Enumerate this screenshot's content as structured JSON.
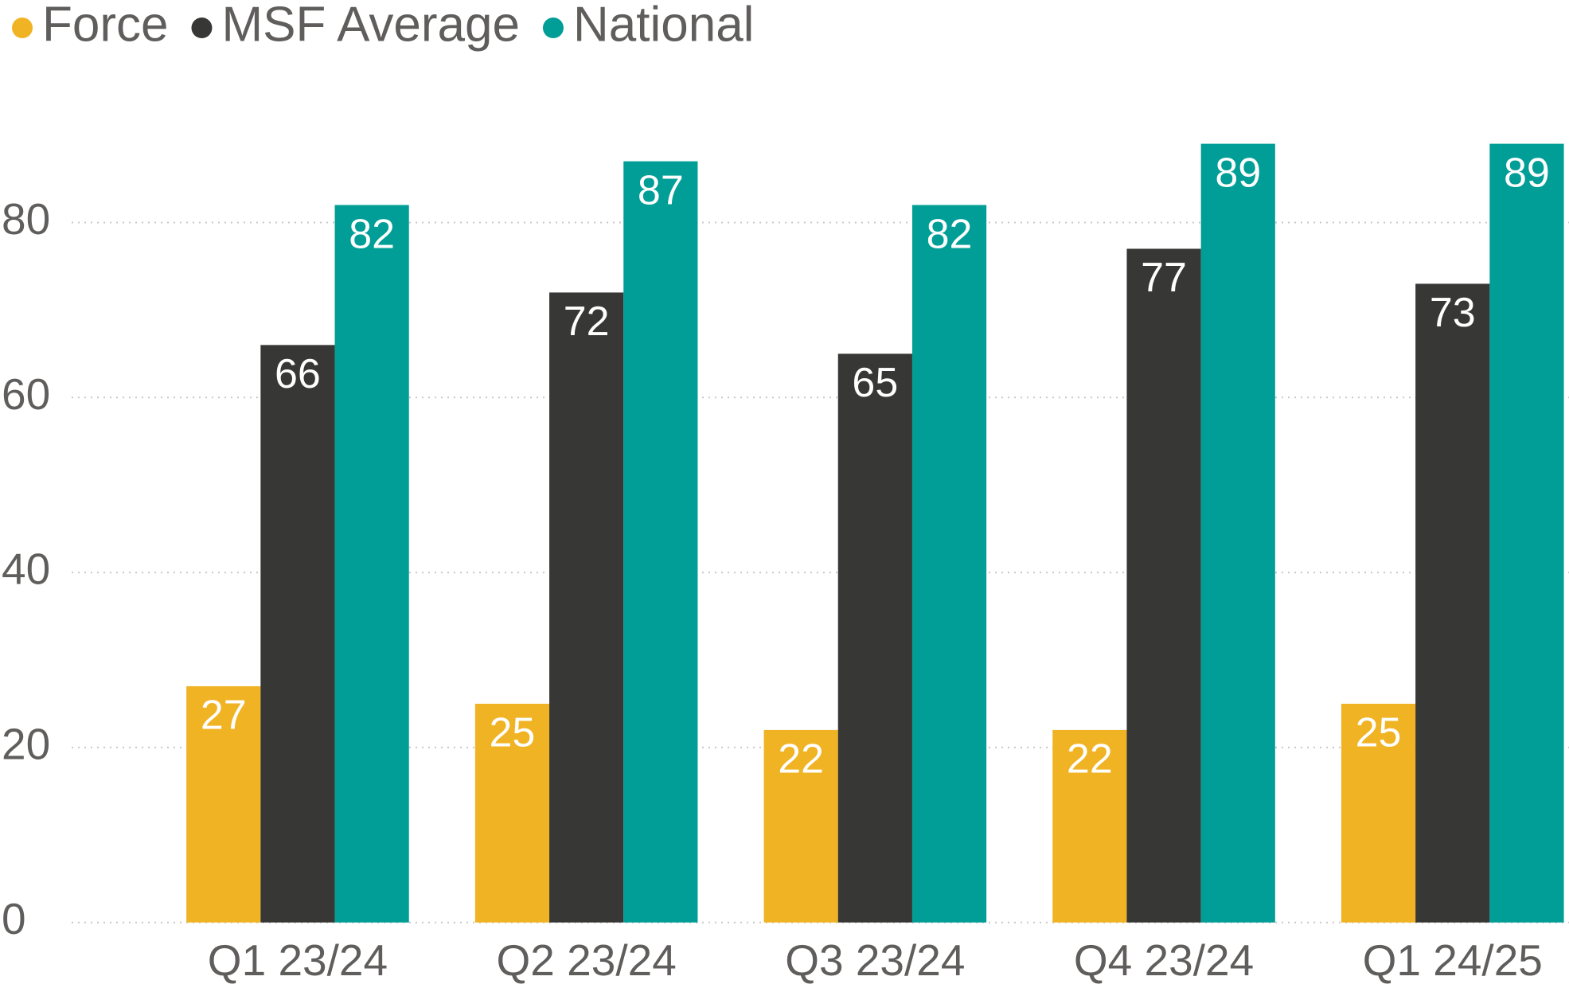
{
  "chart_data": {
    "type": "bar",
    "categories": [
      "Q1 23/24",
      "Q2 23/24",
      "Q3 23/24",
      "Q4 23/24",
      "Q1 24/25"
    ],
    "series": [
      {
        "name": "Force",
        "color": "#F0B323",
        "values": [
          27,
          25,
          22,
          22,
          25
        ]
      },
      {
        "name": "MSF Average",
        "color": "#373735",
        "values": [
          66,
          72,
          65,
          77,
          73
        ]
      },
      {
        "name": "National",
        "color": "#009E96",
        "values": [
          82,
          87,
          82,
          89,
          89
        ]
      }
    ],
    "ylim": [
      0,
      90
    ],
    "yticks": [
      0,
      20,
      40,
      60,
      80
    ],
    "grid": true,
    "legend": "top-left"
  }
}
